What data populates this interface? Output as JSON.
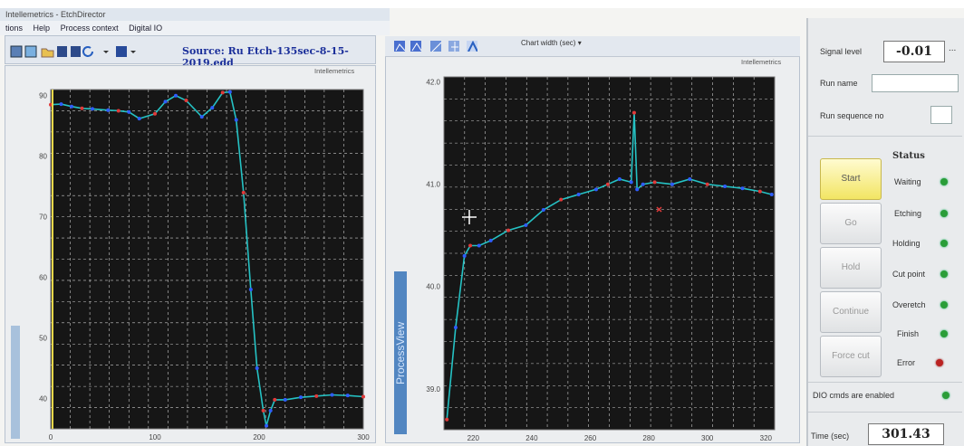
{
  "window": {
    "title": "Intellemetrics - EtchDirector"
  },
  "menu": [
    "tions",
    "Help",
    "Process context",
    "Digital IO"
  ],
  "toolbar": {
    "source_label": "Source: Ru Etch-135sec-8-15-2019.edd"
  },
  "right_toolbar": {
    "chart_width_label": "Chart width (sec)"
  },
  "brand": "Intellemetrics",
  "left_chart": {
    "y_ticks": [
      "90",
      "80",
      "70",
      "60",
      "50",
      "40"
    ],
    "x_ticks": [
      "0",
      "100",
      "200",
      "300"
    ]
  },
  "right_chart": {
    "y_ticks": [
      "42.0",
      "41.0",
      "40.0",
      "39.0"
    ],
    "x_ticks": [
      "220",
      "240",
      "260",
      "280",
      "300",
      "320"
    ],
    "side_tab": "ProcessView"
  },
  "control": {
    "signal_label": "Signal level",
    "signal_value": "-0.01",
    "more": "...",
    "run_name_label": "Run name",
    "run_name_value": "",
    "run_seq_label": "Run sequence no",
    "run_seq_value": "",
    "buttons": {
      "start": "Start",
      "go": "Go",
      "hold": "Hold",
      "continue": "Continue",
      "force_cut": "Force cut"
    },
    "status_title": "Status",
    "status": [
      {
        "label": "Waiting",
        "color": "#2a9d38"
      },
      {
        "label": "Etching",
        "color": "#2a9d38"
      },
      {
        "label": "Holding",
        "color": "#2a9d38"
      },
      {
        "label": "Cut point",
        "color": "#2a9d38"
      },
      {
        "label": "Overetch",
        "color": "#2a9d38"
      },
      {
        "label": "Finish",
        "color": "#2a9d38"
      },
      {
        "label": "Error",
        "color": "#b22222"
      }
    ],
    "dio_label": "DIO cmds are enabled",
    "time_label": "Time (sec)",
    "time_value": "301.43"
  },
  "chart_data": [
    {
      "type": "line",
      "series": [
        {
          "x": [
            0,
            10,
            20,
            30,
            40,
            55,
            65,
            75,
            85,
            100,
            110,
            120,
            130,
            145,
            155,
            165,
            172,
            178,
            185,
            192,
            198,
            204,
            207,
            211,
            215,
            225,
            240,
            255,
            270,
            285,
            300
          ],
          "values": [
            88.5,
            88.6,
            88.2,
            87.9,
            87.8,
            87.6,
            87.5,
            87.3,
            86.2,
            87.0,
            89.0,
            90.0,
            89.2,
            86.5,
            88.0,
            90.5,
            90.6,
            86,
            74,
            58,
            45,
            38,
            35.5,
            38,
            39.8,
            39.8,
            40.2,
            40.4,
            40.6,
            40.5,
            40.3
          ]
        }
      ],
      "xlim": [
        0,
        300
      ],
      "ylim": [
        35,
        91
      ]
    },
    {
      "type": "line",
      "series": [
        {
          "x": [
            211,
            214,
            217,
            219,
            222,
            226,
            232,
            238,
            244,
            250,
            256,
            262,
            266,
            270,
            274,
            275,
            276,
            278,
            282,
            288,
            294,
            300,
            306,
            312,
            318,
            322
          ],
          "values": [
            38.7,
            39.6,
            40.3,
            40.4,
            40.4,
            40.45,
            40.55,
            40.6,
            40.75,
            40.85,
            40.9,
            40.95,
            41.0,
            41.05,
            41.02,
            41.7,
            40.95,
            41.0,
            41.02,
            41.0,
            41.05,
            41.0,
            40.98,
            40.96,
            40.93,
            40.9
          ]
        }
      ],
      "xlim": [
        210,
        323
      ],
      "ylim": [
        38.6,
        42.05
      ]
    }
  ]
}
